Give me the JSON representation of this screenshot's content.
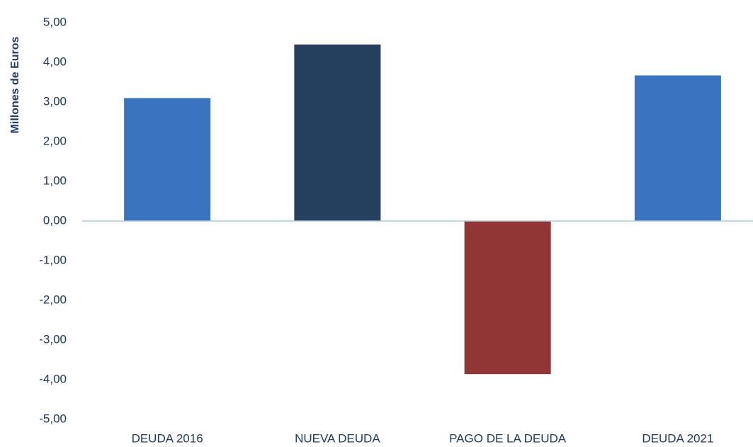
{
  "chart_data": {
    "type": "bar",
    "y_label": "Millones de Euros",
    "categories": [
      "DEUDA 2016",
      "NUEVA DEUDA",
      "PAGO DE LA DEUDA",
      "DEUDA 2021"
    ],
    "values": [
      3.1,
      4.45,
      -3.86,
      3.67
    ],
    "colors": [
      "#3a74c0",
      "#253f5f",
      "#923535",
      "#3a74c0"
    ],
    "ylim": [
      -5,
      5
    ],
    "yticks": [
      {
        "value": -5,
        "label": "-5,00"
      },
      {
        "value": -4,
        "label": "-4,00"
      },
      {
        "value": -3,
        "label": "-3,00"
      },
      {
        "value": -2,
        "label": "-2,00"
      },
      {
        "value": -1,
        "label": "-1,00"
      },
      {
        "value": 0,
        "label": "0,00"
      },
      {
        "value": 1,
        "label": "1,00"
      },
      {
        "value": 2,
        "label": "2,00"
      },
      {
        "value": 3,
        "label": "3,00"
      },
      {
        "value": 4,
        "label": "4,00"
      },
      {
        "value": 5,
        "label": "5,00"
      }
    ],
    "grid": false
  }
}
